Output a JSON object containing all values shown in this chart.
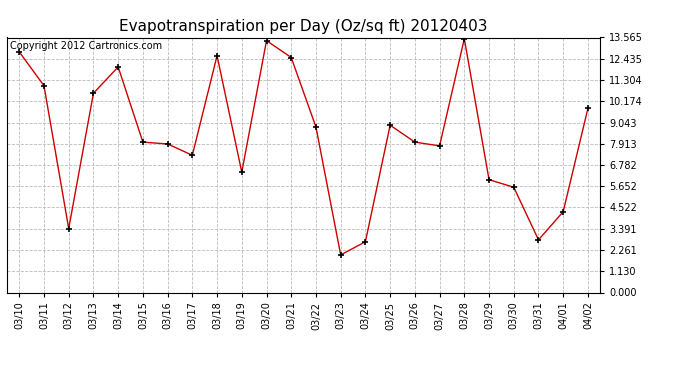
{
  "title": "Evapotranspiration per Day (Oz/sq ft) 20120403",
  "copyright": "Copyright 2012 Cartronics.com",
  "dates": [
    "03/10",
    "03/11",
    "03/12",
    "03/13",
    "03/14",
    "03/15",
    "03/16",
    "03/17",
    "03/18",
    "03/19",
    "03/20",
    "03/21",
    "03/22",
    "03/23",
    "03/24",
    "03/25",
    "03/26",
    "03/27",
    "03/28",
    "03/29",
    "03/30",
    "03/31",
    "04/01",
    "04/02"
  ],
  "values": [
    12.8,
    11.0,
    3.4,
    10.6,
    12.0,
    8.0,
    7.9,
    7.3,
    12.6,
    6.4,
    13.4,
    12.5,
    8.8,
    2.0,
    2.7,
    8.9,
    8.0,
    7.8,
    13.5,
    6.0,
    5.6,
    2.8,
    4.3,
    9.8
  ],
  "line_color": "#cc0000",
  "marker_color": "#000000",
  "background_color": "#ffffff",
  "plot_bg_color": "#ffffff",
  "grid_color": "#bbbbbb",
  "ylim": [
    0.0,
    13.565
  ],
  "yticks": [
    0.0,
    1.13,
    2.261,
    3.391,
    4.522,
    5.652,
    6.782,
    7.913,
    9.043,
    10.174,
    11.304,
    12.435,
    13.565
  ],
  "title_fontsize": 11,
  "tick_fontsize": 7,
  "copyright_fontsize": 7
}
